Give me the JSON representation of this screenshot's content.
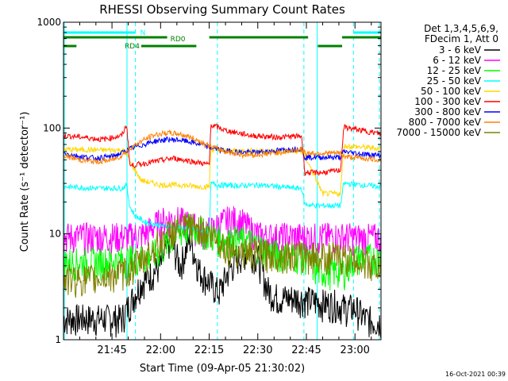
{
  "chart_data": {
    "type": "line",
    "title": "RHESSI Observing Summary Count Rates",
    "xlabel": "Start Time (09-Apr-05 21:30:02)",
    "ylabel": "Count Rate (s⁻¹ detector⁻¹)",
    "yscale": "log",
    "ylim": [
      1,
      1000
    ],
    "xlim": [
      "21:30:02",
      "23:08"
    ],
    "x_ticks": [
      "21:45",
      "22:00",
      "22:15",
      "22:30",
      "22:45",
      "23:00"
    ],
    "y_ticks": [
      "1",
      "10",
      "100",
      "1000"
    ],
    "legend_header": [
      "Det 1,3,4,5,6,9,",
      "FDecim 1, Att 0"
    ],
    "legend_placement": "right",
    "timestamp": "16-Oct-2021 00:39",
    "gaps_minutes": [
      [
        19.6,
        78.3
      ]
    ],
    "night_boundaries_minutes": [
      47.5,
      74.2
    ],
    "flags": [
      {
        "label": "N",
        "color": "#00ffff",
        "segments": [
          [
            0,
            22.2
          ],
          [
            89.5,
            98
          ]
        ]
      },
      {
        "label": "RD0",
        "color": "#008000",
        "segments": [
          [
            0,
            32
          ],
          [
            45,
            75.5
          ],
          [
            86,
            98
          ]
        ]
      },
      {
        "label": "RD4",
        "color": "#008000",
        "segments": [
          [
            0,
            4
          ],
          [
            24,
            41
          ],
          [
            78.5,
            86
          ]
        ]
      }
    ],
    "series": [
      {
        "name": "3 - 6 keV",
        "color": "#000000",
        "times": [
          0,
          10,
          18,
          24,
          30,
          33,
          36,
          39,
          42,
          45,
          48,
          51,
          54,
          57,
          60,
          63,
          66,
          69,
          72,
          75,
          78,
          81,
          84,
          87,
          90,
          93,
          96,
          98
        ],
        "values": [
          1.6,
          1.6,
          1.6,
          3.5,
          5,
          9,
          5,
          9,
          4.5,
          3.5,
          2.8,
          4.5,
          6,
          7,
          6,
          3,
          2.5,
          2.5,
          2.5,
          2.4,
          2.3,
          2.2,
          2.2,
          2,
          2,
          1.6,
          1.5,
          1.5
        ]
      },
      {
        "name": "6 - 12 keV",
        "color": "#ff00ff",
        "times": [
          0,
          10,
          20,
          25,
          28,
          31,
          34,
          37,
          40,
          43,
          46,
          49,
          52,
          55,
          58,
          61,
          64,
          67,
          70,
          73,
          76,
          79,
          82,
          85,
          88,
          91,
          94,
          98
        ],
        "values": [
          9.5,
          9.5,
          9.5,
          10,
          12,
          13.5,
          14,
          13,
          12,
          10.5,
          11,
          13,
          14,
          13,
          11,
          9.5,
          9.5,
          9.5,
          9.5,
          9.5,
          9.3,
          9.5,
          9.5,
          9.5,
          9.5,
          9.3,
          9.3,
          9.3
        ]
      },
      {
        "name": "12 - 25 keV",
        "color": "#00ff00",
        "times": [
          0,
          10,
          20,
          25,
          30,
          33,
          36,
          39,
          42,
          45,
          48,
          51,
          54,
          57,
          60,
          63,
          66,
          69,
          72,
          75,
          78,
          81,
          84,
          87,
          90,
          93,
          96,
          98
        ],
        "values": [
          5.5,
          5.5,
          5.8,
          6,
          7,
          9,
          10.5,
          11.5,
          11,
          10,
          9,
          9,
          8.8,
          8.5,
          8,
          7,
          6.5,
          6.3,
          6.2,
          6.1,
          4.5,
          4.5,
          4.5,
          4.5,
          6,
          6,
          6,
          6
        ]
      },
      {
        "name": "25 - 50 keV",
        "color": "#00ffff",
        "times": [
          0,
          10,
          18,
          19.5,
          20.5,
          22,
          25,
          30,
          35,
          40,
          45,
          45.5,
          48,
          54,
          60,
          66,
          72,
          73.5,
          74.5,
          78,
          84,
          85.5,
          86.5,
          92,
          98
        ],
        "values": [
          28,
          27,
          27,
          29,
          18,
          15,
          13,
          12,
          11.5,
          11,
          10.5,
          30,
          29,
          28.5,
          29,
          28,
          27,
          27,
          19,
          18.5,
          18.5,
          18.5,
          30,
          29,
          28
        ]
      },
      {
        "name": "50 - 100 keV",
        "color": "#ffd700",
        "times": [
          0,
          10,
          18,
          19.5,
          20.5,
          24,
          30,
          36,
          42,
          45,
          45.5,
          48,
          54,
          60,
          66,
          72,
          73.5,
          74.5,
          80,
          85.5,
          86.5,
          92,
          98
        ],
        "values": [
          63,
          62,
          62,
          58,
          48,
          32,
          29,
          29,
          28,
          28,
          63,
          62,
          61,
          61,
          60,
          60,
          60,
          55,
          24,
          24,
          68,
          66,
          64
        ]
      },
      {
        "name": "100 - 300 keV",
        "color": "#ff0000",
        "times": [
          0,
          6,
          12,
          18,
          19.5,
          20.5,
          26,
          34,
          42,
          45,
          45.5,
          50,
          58,
          66,
          73.5,
          74.5,
          80,
          85.5,
          86.5,
          92,
          98
        ],
        "values": [
          85,
          82,
          78,
          85,
          108,
          44,
          47,
          52,
          47,
          45,
          108,
          95,
          85,
          82,
          84,
          38,
          38,
          40,
          102,
          95,
          88
        ]
      },
      {
        "name": "300 - 800 keV",
        "color": "#0000ff",
        "times": [
          0,
          5,
          10,
          15,
          18,
          20,
          24,
          28,
          32,
          36,
          40,
          45,
          50,
          55,
          60,
          65,
          70,
          73.5,
          74.5,
          80,
          85.5,
          86.5,
          92,
          98
        ],
        "values": [
          58,
          54,
          52,
          54,
          58,
          63,
          69,
          75,
          78,
          77,
          73,
          66,
          61,
          59,
          59,
          61,
          63,
          64,
          53,
          53,
          53,
          60,
          57,
          55
        ]
      },
      {
        "name": "800 - 7000 keV",
        "color": "#ff8000",
        "times": [
          0,
          5,
          10,
          15,
          18,
          20,
          24,
          28,
          32,
          36,
          40,
          45,
          50,
          55,
          60,
          65,
          70,
          73.5,
          74.5,
          80,
          85.5,
          86.5,
          92,
          98
        ],
        "values": [
          55,
          50,
          48,
          50,
          55,
          63,
          75,
          86,
          90,
          88,
          80,
          68,
          60,
          56,
          56,
          58,
          61,
          63,
          58,
          58,
          58,
          54,
          52,
          50
        ]
      },
      {
        "name": "7000 - 15000 keV",
        "color": "#808000",
        "times": [
          0,
          10,
          20,
          25,
          30,
          33,
          36,
          39,
          42,
          45,
          48,
          51,
          54,
          57,
          60,
          63,
          66,
          69,
          72,
          75,
          78,
          81,
          84,
          87,
          90,
          93,
          96,
          98
        ],
        "values": [
          3.8,
          3.8,
          4.5,
          6,
          8.5,
          10.5,
          11.5,
          12,
          11.5,
          10,
          8.5,
          7.5,
          7,
          6.8,
          6.6,
          6.5,
          6.5,
          6.4,
          6.4,
          6.3,
          6.3,
          6.2,
          6.2,
          6,
          5.8,
          5.5,
          5,
          4.8
        ]
      }
    ]
  }
}
